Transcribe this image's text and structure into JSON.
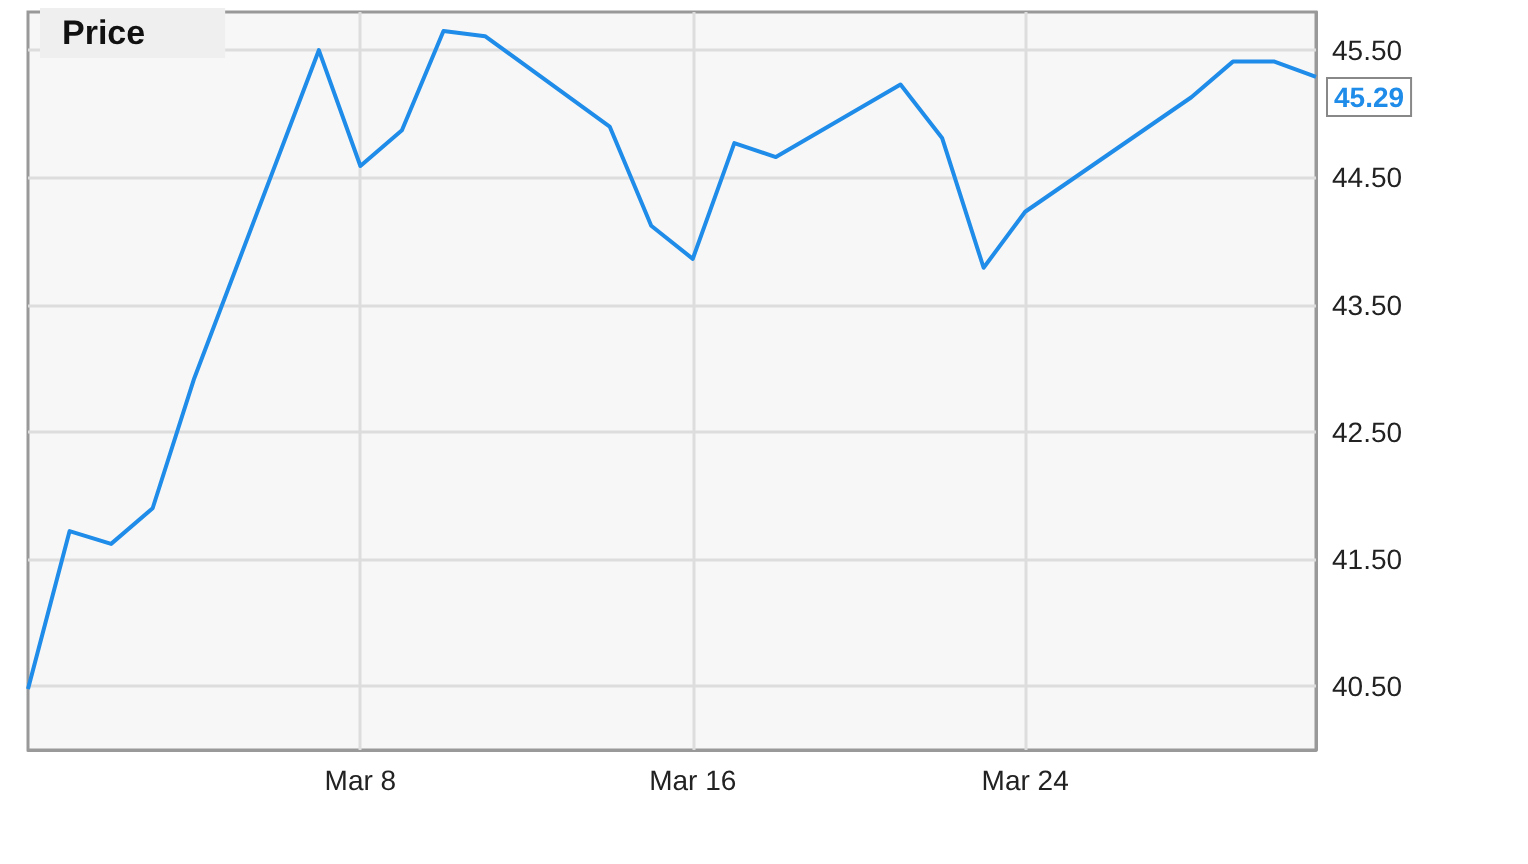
{
  "chart_data": {
    "type": "line",
    "legend": "top left",
    "grid": true,
    "marker": "none",
    "line_style": "solid",
    "x": [
      "--02-29",
      "--03-01",
      "--03-02",
      "--03-03",
      "--03-04",
      "--03-07",
      "--03-08",
      "--03-09",
      "--03-10",
      "--03-11",
      "--03-14",
      "--03-15",
      "--03-16",
      "--03-17",
      "--03-18",
      "--03-21",
      "--03-22",
      "--03-23",
      "--03-24",
      "--03-28",
      "--03-29",
      "--03-30",
      "--03-31"
    ],
    "series": [
      {
        "name": "Price",
        "color": "#1e8ce8",
        "values": [
          40.48,
          41.72,
          41.62,
          41.9,
          42.92,
          45.5,
          44.59,
          44.87,
          45.65,
          45.61,
          44.9,
          44.12,
          43.86,
          44.77,
          44.66,
          45.23,
          44.81,
          43.79,
          44.23,
          45.13,
          45.41,
          45.41,
          45.29
        ],
        "value_labels": [
          null,
          null,
          null,
          null,
          null,
          null,
          null,
          null,
          null,
          null,
          null,
          null,
          null,
          null,
          null,
          null,
          null,
          null,
          null,
          null,
          null,
          null,
          "45.29"
        ]
      }
    ],
    "xlim": [
      "--02-29",
      "--03-31"
    ],
    "xticks": [
      {
        "value": "--03-08",
        "label": "Mar 8"
      },
      {
        "value": "--03-16",
        "label": "Mar 16"
      },
      {
        "value": "--03-24",
        "label": "Mar 24"
      }
    ],
    "ylim": [
      40.0,
      45.8
    ],
    "yticks": [
      {
        "value": 40.5,
        "label": "40.50"
      },
      {
        "value": 41.5,
        "label": "41.50"
      },
      {
        "value": 42.5,
        "label": "42.50"
      },
      {
        "value": 43.5,
        "label": "43.50"
      },
      {
        "value": 44.5,
        "label": "44.50"
      },
      {
        "value": 45.5,
        "label": "45.50"
      }
    ]
  }
}
